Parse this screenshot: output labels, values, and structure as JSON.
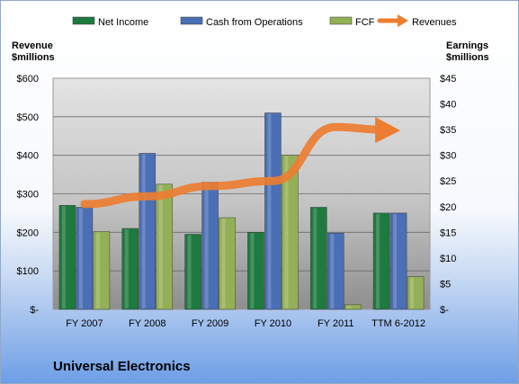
{
  "chart_data": {
    "type": "bar",
    "title": "Universal Electronics",
    "categories": [
      "FY 2007",
      "FY 2008",
      "FY 2009",
      "FY 2010",
      "FY 2011",
      "TTM 6-2012"
    ],
    "series": [
      {
        "name": "Net Income",
        "axis": "left",
        "color": "#1f7a3f",
        "values": [
          270,
          210,
          195,
          200,
          265,
          250
        ]
      },
      {
        "name": "Cash from Operations",
        "axis": "left",
        "color": "#4a6fb5",
        "values": [
          265,
          405,
          330,
          510,
          198,
          250
        ]
      },
      {
        "name": "FCF",
        "axis": "left",
        "color": "#94b057",
        "values": [
          202,
          325,
          238,
          400,
          12,
          85
        ]
      }
    ],
    "revenues": {
      "name": "Revenues",
      "axis": "right",
      "color": "#ed7d31",
      "values": [
        20.5,
        22,
        24,
        25,
        35.5,
        35
      ]
    },
    "ylabel_left": "Revenue\n$millions",
    "ylabel_right": "Earnings\n$millions",
    "ylim_left": [
      0,
      600
    ],
    "ylim_right": [
      0,
      45
    ],
    "yticks_left": [
      "$-",
      "$100",
      "$200",
      "$300",
      "$400",
      "$500",
      "$600"
    ],
    "yticks_right": [
      "$-",
      "$5",
      "$10",
      "$15",
      "$20",
      "$25",
      "$30",
      "$35",
      "$40",
      "$45"
    ],
    "grid": true,
    "legend_position": "top"
  }
}
